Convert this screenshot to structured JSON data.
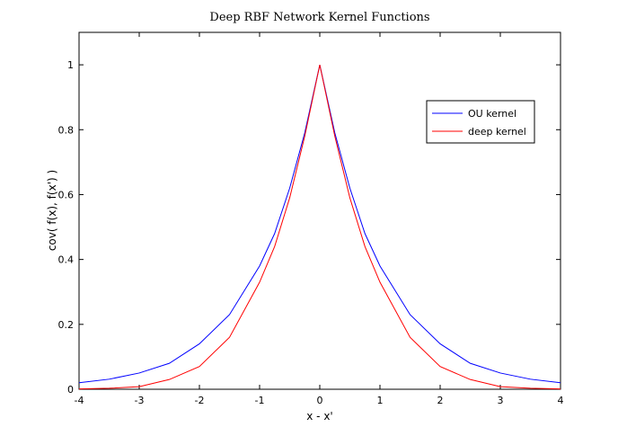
{
  "chart_data": {
    "type": "line",
    "title": "Deep RBF Network Kernel Functions",
    "xlabel": "x - x'",
    "ylabel": "cov( f(x), f(x') )",
    "xlim": [
      -4,
      4
    ],
    "ylim": [
      0,
      1.1
    ],
    "xticks": [
      -4,
      -3,
      -2,
      -1,
      0,
      1,
      2,
      3,
      4
    ],
    "yticks": [
      0,
      0.2,
      0.4,
      0.6,
      0.8,
      1
    ],
    "grid": false,
    "legend_position": "top-right",
    "series": [
      {
        "name": "OU kernel",
        "color": "#0000ff",
        "x": [
          -4,
          -3.5,
          -3,
          -2.5,
          -2,
          -1.5,
          -1,
          -0.75,
          -0.5,
          -0.25,
          0,
          0.25,
          0.5,
          0.75,
          1,
          1.5,
          2,
          2.5,
          3,
          3.5,
          4
        ],
        "y": [
          0.02,
          0.031,
          0.05,
          0.08,
          0.14,
          0.23,
          0.38,
          0.48,
          0.62,
          0.79,
          1.0,
          0.79,
          0.62,
          0.48,
          0.38,
          0.23,
          0.14,
          0.08,
          0.05,
          0.031,
          0.02
        ]
      },
      {
        "name": "deep kernel",
        "color": "#ff0000",
        "x": [
          -4,
          -3.5,
          -3,
          -2.5,
          -2,
          -1.5,
          -1,
          -0.75,
          -0.5,
          -0.25,
          0,
          0.25,
          0.5,
          0.75,
          1,
          1.5,
          2,
          2.5,
          3,
          3.5,
          4
        ],
        "y": [
          0.001,
          0.003,
          0.008,
          0.03,
          0.07,
          0.16,
          0.33,
          0.44,
          0.59,
          0.78,
          1.0,
          0.78,
          0.59,
          0.44,
          0.33,
          0.16,
          0.07,
          0.03,
          0.008,
          0.003,
          0.001
        ]
      }
    ]
  }
}
